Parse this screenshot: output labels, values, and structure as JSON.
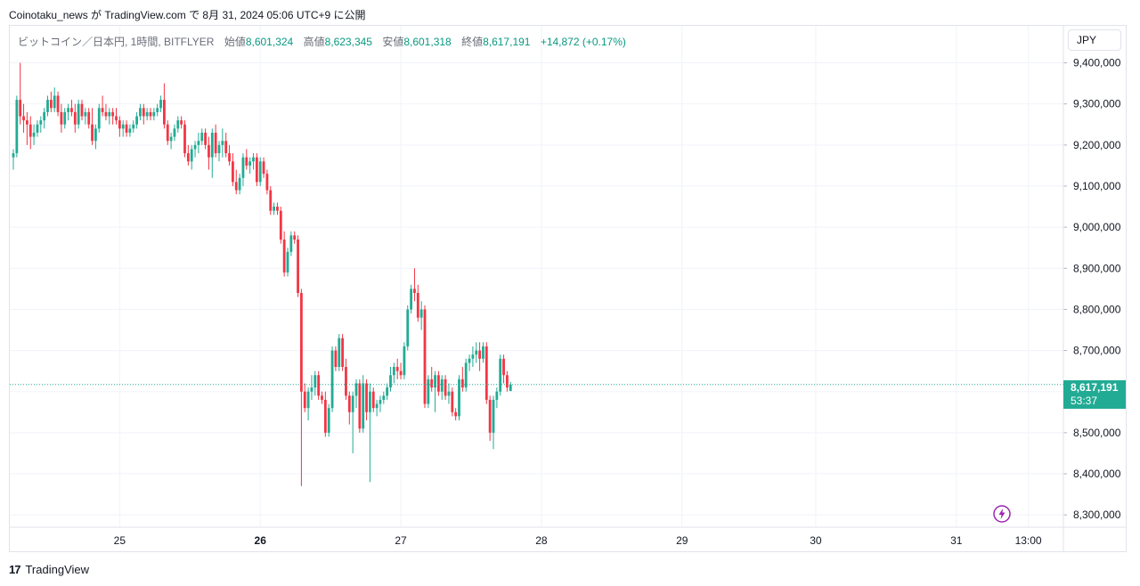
{
  "header": {
    "publish_text": "Coinotaku_news が TradingView.com で 8月 31, 2024 05:06 UTC+9 に公開"
  },
  "legend": {
    "symbol": "ビットコイン／日本円, 1時間, BITFLYER",
    "open_label": "始値",
    "open_value": "8,601,324",
    "high_label": "高値",
    "high_value": "8,623,345",
    "low_label": "安値",
    "low_value": "8,601,318",
    "close_label": "終値",
    "close_value": "8,617,191",
    "change": "+14,872 (+0.17%)"
  },
  "currency_button": "JPY",
  "price_tag": {
    "price": "8,617,191",
    "countdown": "53:37"
  },
  "footer": {
    "brand": "TradingView",
    "logo": "17"
  },
  "icons": {
    "bolt": "lightning-bolt-icon",
    "logo": "tradingview-logo-icon"
  },
  "colors": {
    "up": "#22ab94",
    "down": "#f23645",
    "grid": "#f0f3fa",
    "axis_text": "#131722",
    "last_price_line": "#22ab94",
    "bolt": "#9c27b0"
  },
  "chart_data": {
    "type": "candlestick",
    "symbol": "BTC/JPY",
    "interval": "1時間",
    "exchange": "BITFLYER",
    "y_ticks": [
      8300000,
      8400000,
      8500000,
      8600000,
      8700000,
      8800000,
      8900000,
      9000000,
      9100000,
      9200000,
      9300000,
      9400000
    ],
    "y_tick_labels": [
      "8,300,000",
      "8,400,000",
      "8,500,000",
      "8,600,000",
      "8,700,000",
      "8,800,000",
      "8,900,000",
      "9,000,000",
      "9,100,000",
      "9,200,000",
      "9,300,000",
      "9,400,000"
    ],
    "ylim": [
      8270000,
      9490000
    ],
    "x_ticks": [
      {
        "label": "25",
        "bold": false,
        "index": 31
      },
      {
        "label": "26",
        "bold": true,
        "index": 72
      },
      {
        "label": "27",
        "bold": false,
        "index": 113
      },
      {
        "label": "28",
        "bold": false,
        "index": 154
      },
      {
        "label": "29",
        "bold": false,
        "index": 195
      },
      {
        "label": "30",
        "bold": false,
        "index": 234
      },
      {
        "label": "31",
        "bold": false,
        "index": 275
      },
      {
        "label": "13:00",
        "bold": false,
        "index": 296
      }
    ],
    "last_price": 8617191,
    "grid": true,
    "candles": [
      [
        9170000,
        9190000,
        9140000,
        9180000
      ],
      [
        9180000,
        9320000,
        9170000,
        9310000
      ],
      [
        9310000,
        9400000,
        9250000,
        9270000
      ],
      [
        9270000,
        9300000,
        9230000,
        9260000
      ],
      [
        9260000,
        9280000,
        9200000,
        9250000
      ],
      [
        9250000,
        9270000,
        9190000,
        9220000
      ],
      [
        9220000,
        9250000,
        9200000,
        9230000
      ],
      [
        9230000,
        9260000,
        9220000,
        9250000
      ],
      [
        9250000,
        9270000,
        9230000,
        9260000
      ],
      [
        9260000,
        9290000,
        9240000,
        9280000
      ],
      [
        9280000,
        9320000,
        9270000,
        9310000
      ],
      [
        9310000,
        9330000,
        9280000,
        9290000
      ],
      [
        9290000,
        9340000,
        9280000,
        9320000
      ],
      [
        9320000,
        9330000,
        9270000,
        9280000
      ],
      [
        9280000,
        9300000,
        9230000,
        9250000
      ],
      [
        9250000,
        9290000,
        9240000,
        9280000
      ],
      [
        9280000,
        9300000,
        9260000,
        9290000
      ],
      [
        9290000,
        9310000,
        9270000,
        9280000
      ],
      [
        9280000,
        9300000,
        9230000,
        9250000
      ],
      [
        9250000,
        9310000,
        9240000,
        9300000
      ],
      [
        9300000,
        9310000,
        9260000,
        9270000
      ],
      [
        9270000,
        9290000,
        9250000,
        9280000
      ],
      [
        9280000,
        9290000,
        9240000,
        9250000
      ],
      [
        9250000,
        9290000,
        9200000,
        9210000
      ],
      [
        9210000,
        9250000,
        9190000,
        9240000
      ],
      [
        9240000,
        9300000,
        9230000,
        9290000
      ],
      [
        9290000,
        9320000,
        9270000,
        9280000
      ],
      [
        9280000,
        9300000,
        9260000,
        9270000
      ],
      [
        9270000,
        9290000,
        9250000,
        9280000
      ],
      [
        9280000,
        9290000,
        9250000,
        9270000
      ],
      [
        9270000,
        9290000,
        9250000,
        9260000
      ],
      [
        9260000,
        9270000,
        9220000,
        9240000
      ],
      [
        9240000,
        9260000,
        9220000,
        9250000
      ],
      [
        9250000,
        9260000,
        9220000,
        9230000
      ],
      [
        9230000,
        9250000,
        9220000,
        9240000
      ],
      [
        9240000,
        9260000,
        9230000,
        9250000
      ],
      [
        9250000,
        9280000,
        9240000,
        9270000
      ],
      [
        9270000,
        9300000,
        9260000,
        9290000
      ],
      [
        9290000,
        9300000,
        9250000,
        9270000
      ],
      [
        9270000,
        9290000,
        9260000,
        9280000
      ],
      [
        9280000,
        9290000,
        9260000,
        9270000
      ],
      [
        9270000,
        9290000,
        9260000,
        9280000
      ],
      [
        9280000,
        9300000,
        9270000,
        9290000
      ],
      [
        9290000,
        9320000,
        9280000,
        9310000
      ],
      [
        9310000,
        9350000,
        9240000,
        9250000
      ],
      [
        9250000,
        9260000,
        9200000,
        9210000
      ],
      [
        9210000,
        9230000,
        9190000,
        9220000
      ],
      [
        9220000,
        9250000,
        9210000,
        9240000
      ],
      [
        9240000,
        9270000,
        9230000,
        9260000
      ],
      [
        9260000,
        9270000,
        9240000,
        9250000
      ],
      [
        9250000,
        9260000,
        9170000,
        9180000
      ],
      [
        9180000,
        9200000,
        9150000,
        9160000
      ],
      [
        9160000,
        9200000,
        9140000,
        9190000
      ],
      [
        9190000,
        9210000,
        9170000,
        9200000
      ],
      [
        9200000,
        9230000,
        9180000,
        9210000
      ],
      [
        9210000,
        9240000,
        9200000,
        9230000
      ],
      [
        9230000,
        9240000,
        9190000,
        9200000
      ],
      [
        9200000,
        9220000,
        9140000,
        9170000
      ],
      [
        9170000,
        9240000,
        9120000,
        9230000
      ],
      [
        9230000,
        9250000,
        9170000,
        9180000
      ],
      [
        9180000,
        9210000,
        9160000,
        9200000
      ],
      [
        9200000,
        9240000,
        9170000,
        9210000
      ],
      [
        9210000,
        9230000,
        9170000,
        9180000
      ],
      [
        9180000,
        9200000,
        9150000,
        9160000
      ],
      [
        9160000,
        9180000,
        9100000,
        9110000
      ],
      [
        9110000,
        9140000,
        9080000,
        9090000
      ],
      [
        9090000,
        9130000,
        9080000,
        9120000
      ],
      [
        9120000,
        9180000,
        9100000,
        9170000
      ],
      [
        9170000,
        9190000,
        9140000,
        9150000
      ],
      [
        9150000,
        9170000,
        9130000,
        9160000
      ],
      [
        9160000,
        9180000,
        9140000,
        9170000
      ],
      [
        9170000,
        9180000,
        9100000,
        9110000
      ],
      [
        9110000,
        9170000,
        9100000,
        9160000
      ],
      [
        9160000,
        9170000,
        9120000,
        9130000
      ],
      [
        9130000,
        9140000,
        9080000,
        9090000
      ],
      [
        9090000,
        9100000,
        9030000,
        9040000
      ],
      [
        9040000,
        9060000,
        9030000,
        9050000
      ],
      [
        9050000,
        9060000,
        9030000,
        9040000
      ],
      [
        9040000,
        9050000,
        8960000,
        8970000
      ],
      [
        8970000,
        8990000,
        8880000,
        8890000
      ],
      [
        8890000,
        8950000,
        8880000,
        8940000
      ],
      [
        8940000,
        8990000,
        8930000,
        8980000
      ],
      [
        8980000,
        8990000,
        8960000,
        8970000
      ],
      [
        8970000,
        8980000,
        8830000,
        8840000
      ],
      [
        8840000,
        8850000,
        8370000,
        8600000
      ],
      [
        8600000,
        8620000,
        8550000,
        8560000
      ],
      [
        8560000,
        8610000,
        8530000,
        8600000
      ],
      [
        8600000,
        8640000,
        8580000,
        8610000
      ],
      [
        8610000,
        8650000,
        8590000,
        8640000
      ],
      [
        8640000,
        8650000,
        8580000,
        8590000
      ],
      [
        8590000,
        8600000,
        8570000,
        8580000
      ],
      [
        8580000,
        8600000,
        8490000,
        8500000
      ],
      [
        8500000,
        8570000,
        8490000,
        8560000
      ],
      [
        8560000,
        8710000,
        8550000,
        8700000
      ],
      [
        8700000,
        8710000,
        8650000,
        8660000
      ],
      [
        8660000,
        8740000,
        8650000,
        8730000
      ],
      [
        8730000,
        8740000,
        8650000,
        8660000
      ],
      [
        8660000,
        8680000,
        8580000,
        8590000
      ],
      [
        8590000,
        8600000,
        8520000,
        8550000
      ],
      [
        8550000,
        8600000,
        8450000,
        8590000
      ],
      [
        8590000,
        8630000,
        8560000,
        8620000
      ],
      [
        8620000,
        8630000,
        8500000,
        8510000
      ],
      [
        8510000,
        8640000,
        8500000,
        8620000
      ],
      [
        8620000,
        8630000,
        8530000,
        8550000
      ],
      [
        8550000,
        8620000,
        8380000,
        8600000
      ],
      [
        8600000,
        8610000,
        8550000,
        8560000
      ],
      [
        8560000,
        8580000,
        8540000,
        8570000
      ],
      [
        8570000,
        8590000,
        8550000,
        8580000
      ],
      [
        8580000,
        8600000,
        8570000,
        8590000
      ],
      [
        8590000,
        8620000,
        8580000,
        8610000
      ],
      [
        8610000,
        8660000,
        8600000,
        8640000
      ],
      [
        8640000,
        8670000,
        8620000,
        8660000
      ],
      [
        8660000,
        8680000,
        8630000,
        8650000
      ],
      [
        8650000,
        8670000,
        8630000,
        8640000
      ],
      [
        8640000,
        8720000,
        8630000,
        8710000
      ],
      [
        8710000,
        8810000,
        8700000,
        8800000
      ],
      [
        8800000,
        8860000,
        8790000,
        8850000
      ],
      [
        8850000,
        8900000,
        8820000,
        8840000
      ],
      [
        8840000,
        8860000,
        8770000,
        8780000
      ],
      [
        8780000,
        8820000,
        8750000,
        8800000
      ],
      [
        8800000,
        8810000,
        8560000,
        8570000
      ],
      [
        8570000,
        8640000,
        8560000,
        8630000
      ],
      [
        8630000,
        8660000,
        8600000,
        8610000
      ],
      [
        8610000,
        8650000,
        8550000,
        8640000
      ],
      [
        8640000,
        8650000,
        8590000,
        8600000
      ],
      [
        8600000,
        8640000,
        8580000,
        8630000
      ],
      [
        8630000,
        8640000,
        8580000,
        8590000
      ],
      [
        8590000,
        8620000,
        8570000,
        8600000
      ],
      [
        8600000,
        8610000,
        8540000,
        8550000
      ],
      [
        8550000,
        8560000,
        8530000,
        8540000
      ],
      [
        8540000,
        8640000,
        8530000,
        8630000
      ],
      [
        8630000,
        8660000,
        8600000,
        8610000
      ],
      [
        8610000,
        8680000,
        8600000,
        8670000
      ],
      [
        8670000,
        8690000,
        8650000,
        8680000
      ],
      [
        8680000,
        8710000,
        8660000,
        8690000
      ],
      [
        8690000,
        8720000,
        8670000,
        8700000
      ],
      [
        8700000,
        8720000,
        8650000,
        8680000
      ],
      [
        8680000,
        8720000,
        8670000,
        8710000
      ],
      [
        8710000,
        8720000,
        8570000,
        8580000
      ],
      [
        8580000,
        8590000,
        8480000,
        8500000
      ],
      [
        8500000,
        8590000,
        8460000,
        8580000
      ],
      [
        8580000,
        8610000,
        8560000,
        8600000
      ],
      [
        8600000,
        8690000,
        8590000,
        8680000
      ],
      [
        8680000,
        8690000,
        8620000,
        8640000
      ],
      [
        8640000,
        8650000,
        8600000,
        8610000
      ],
      [
        8601324,
        8623345,
        8601318,
        8617191
      ]
    ],
    "candle_columns": [
      "open",
      "high",
      "low",
      "close"
    ]
  }
}
